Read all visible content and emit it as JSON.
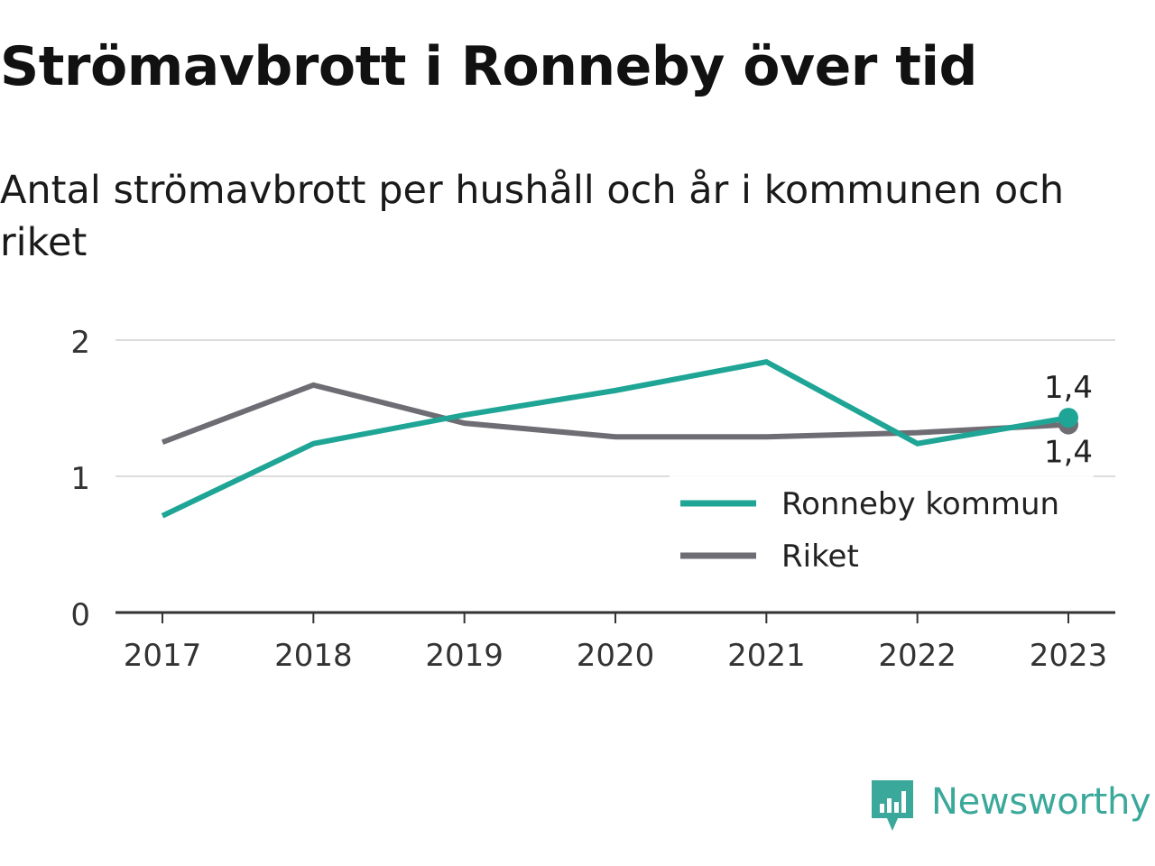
{
  "header": {
    "title": "Strömavbrott i Ronneby över tid",
    "subtitle": "Antal strömavbrott per hushåll och år i kommunen och riket"
  },
  "chart_data": {
    "type": "line",
    "title": "Strömavbrott i Ronneby över tid",
    "subtitle": "Antal strömavbrott per hushåll och år i kommunen och riket",
    "xlabel": "",
    "ylabel": "",
    "x": [
      "2017",
      "2018",
      "2019",
      "2020",
      "2021",
      "2022",
      "2023"
    ],
    "ylim": [
      0,
      2
    ],
    "yticks": [
      "0",
      "1",
      "2"
    ],
    "grid": true,
    "legend": "bottom-right",
    "series": [
      {
        "name": "Ronneby kommun",
        "color": "#1fa595",
        "values": [
          0.71,
          1.24,
          1.45,
          1.63,
          1.84,
          1.24,
          1.43
        ],
        "end_label": "1,4"
      },
      {
        "name": "Riket",
        "color": "#6e6d74",
        "values": [
          1.25,
          1.67,
          1.39,
          1.29,
          1.29,
          1.32,
          1.38
        ],
        "end_label": "1,4"
      }
    ]
  },
  "footer": {
    "brand": "Newsworthy",
    "brand_color": "#3aa89a",
    "logo_icon": "bar-chart-speech-bubble-icon"
  }
}
